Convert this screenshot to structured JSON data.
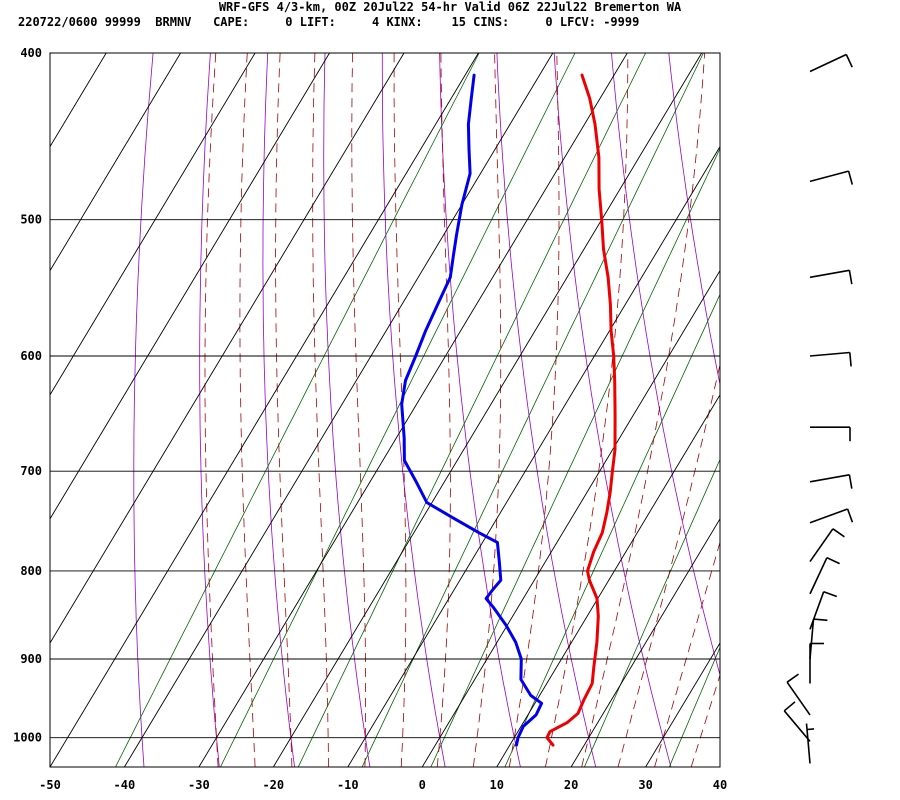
{
  "header": {
    "title": "WRF-GFS 4/3-km, 00Z 20Jul22 54-hr Valid 06Z 22Jul22 Bremerton WA",
    "indices": "220722/0600 99999  BRMNV   CAPE:     0 LIFT:     4 KINX:    15 CINS:     0 LFCV: -9999"
  },
  "chart_data": {
    "type": "line",
    "subtype": "skew-T log-P sounding",
    "title": "WRF-GFS 4/3-km, 00Z 20Jul22 54-hr Valid 06Z 22Jul22 Bremerton WA",
    "x_tick_labels": [
      "-50",
      "-40",
      "-30",
      "-20",
      "-10",
      "0",
      "10",
      "20",
      "30",
      "40"
    ],
    "y_tick_labels": [
      "400",
      "500",
      "600",
      "700",
      "800",
      "900",
      "1000"
    ],
    "xlim": [
      -50,
      40
    ],
    "ylim_hpa": [
      1040,
      400
    ],
    "y_scale": "log",
    "grid": true,
    "colors": {
      "temperature": "#ee0000",
      "dewpoint": "#0000ee",
      "dry_adiabat": "#9900cc",
      "moist_adiabat": "#aa0000",
      "mixing_ratio": "#006600",
      "grid": "#000000",
      "wind_barb": "#000000"
    },
    "series": [
      {
        "key": "temperature",
        "points": [
          [
            1010,
            15.8
          ],
          [
            1000,
            14.4
          ],
          [
            992,
            14.3
          ],
          [
            980,
            15.9
          ],
          [
            968,
            16.6
          ],
          [
            950,
            16.3
          ],
          [
            930,
            16.1
          ],
          [
            910,
            15.0
          ],
          [
            880,
            13.4
          ],
          [
            850,
            11.5
          ],
          [
            830,
            9.9
          ],
          [
            810,
            7.4
          ],
          [
            800,
            6.4
          ],
          [
            780,
            5.7
          ],
          [
            760,
            5.3
          ],
          [
            740,
            4.3
          ],
          [
            720,
            3.1
          ],
          [
            700,
            1.7
          ],
          [
            680,
            0.3
          ],
          [
            650,
            -2.4
          ],
          [
            620,
            -5.3
          ],
          [
            600,
            -7.4
          ],
          [
            580,
            -9.8
          ],
          [
            560,
            -12.0
          ],
          [
            540,
            -14.5
          ],
          [
            520,
            -17.4
          ],
          [
            500,
            -20.0
          ],
          [
            480,
            -22.8
          ],
          [
            460,
            -25.4
          ],
          [
            440,
            -28.6
          ],
          [
            425,
            -31.4
          ],
          [
            412,
            -34.3
          ]
        ]
      },
      {
        "key": "dewpoint",
        "points": [
          [
            1010,
            10.9
          ],
          [
            1000,
            10.5
          ],
          [
            985,
            10.3
          ],
          [
            970,
            11.1
          ],
          [
            955,
            10.9
          ],
          [
            945,
            8.8
          ],
          [
            925,
            6.2
          ],
          [
            900,
            4.6
          ],
          [
            880,
            2.5
          ],
          [
            860,
            -0.2
          ],
          [
            840,
            -3.3
          ],
          [
            830,
            -5.0
          ],
          [
            820,
            -4.8
          ],
          [
            810,
            -4.5
          ],
          [
            790,
            -6.2
          ],
          [
            770,
            -8.0
          ],
          [
            760,
            -11.3
          ],
          [
            745,
            -16.0
          ],
          [
            730,
            -20.7
          ],
          [
            710,
            -23.8
          ],
          [
            690,
            -27.1
          ],
          [
            670,
            -28.9
          ],
          [
            640,
            -32.0
          ],
          [
            620,
            -33.4
          ],
          [
            600,
            -34.0
          ],
          [
            580,
            -34.7
          ],
          [
            560,
            -35.2
          ],
          [
            540,
            -35.7
          ],
          [
            525,
            -37.0
          ],
          [
            510,
            -38.3
          ],
          [
            490,
            -40.0
          ],
          [
            470,
            -41.4
          ],
          [
            455,
            -43.5
          ],
          [
            440,
            -45.6
          ],
          [
            425,
            -47.3
          ],
          [
            412,
            -48.8
          ]
        ]
      }
    ],
    "wind_barbs_kt": [
      {
        "p": 410,
        "dir": 245,
        "spd": 10
      },
      {
        "p": 475,
        "dir": 255,
        "spd": 10
      },
      {
        "p": 540,
        "dir": 260,
        "spd": 10
      },
      {
        "p": 600,
        "dir": 265,
        "spd": 10
      },
      {
        "p": 660,
        "dir": 270,
        "spd": 10
      },
      {
        "p": 710,
        "dir": 260,
        "spd": 10
      },
      {
        "p": 750,
        "dir": 250,
        "spd": 10
      },
      {
        "p": 790,
        "dir": 215,
        "spd": 10
      },
      {
        "p": 825,
        "dir": 205,
        "spd": 10
      },
      {
        "p": 865,
        "dir": 200,
        "spd": 10
      },
      {
        "p": 900,
        "dir": 185,
        "spd": 10
      },
      {
        "p": 930,
        "dir": 180,
        "spd": 10
      },
      {
        "p": 970,
        "dir": 145,
        "spd": 10
      },
      {
        "p": 1005,
        "dir": 140,
        "spd": 10
      },
      {
        "p": 1035,
        "dir": 175,
        "spd": 5
      }
    ]
  }
}
